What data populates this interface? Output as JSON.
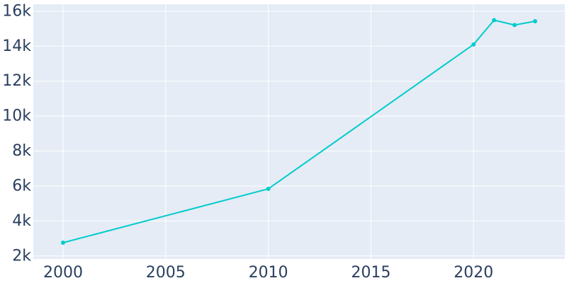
{
  "chart_data": {
    "type": "line",
    "title": "",
    "xlabel": "",
    "ylabel": "",
    "x": [
      2000,
      2010,
      2020,
      2021,
      2022,
      2023
    ],
    "series": [
      {
        "values": [
          2760,
          5840,
          14100,
          15490,
          15210,
          15430
        ]
      }
    ],
    "xlim": [
      1998.55,
      2024.45
    ],
    "ylim": [
      1830,
      16400
    ],
    "x_ticks": [
      2000,
      2005,
      2010,
      2015,
      2020
    ],
    "x_tick_labels": [
      "2000",
      "2005",
      "2010",
      "2015",
      "2020"
    ],
    "y_ticks": [
      2000,
      4000,
      6000,
      8000,
      10000,
      12000,
      14000,
      16000
    ],
    "y_tick_labels": [
      "2k",
      "4k",
      "6k",
      "8k",
      "10k",
      "12k",
      "14k",
      "16k"
    ],
    "grid": true,
    "legend": "none",
    "colors": {
      "line": "#00cccc",
      "plot_background": "#e5ecf6",
      "grid": "#ffffff",
      "tick_text": "#2a3f5f"
    }
  }
}
